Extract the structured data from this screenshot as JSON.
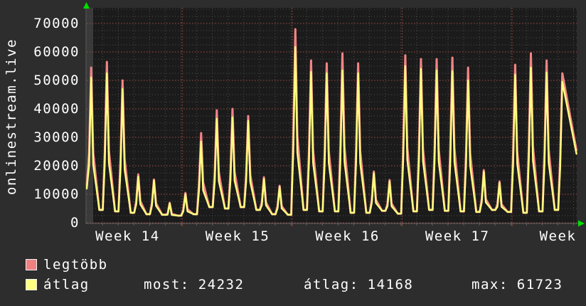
{
  "chart_data": {
    "type": "line",
    "title": "onlinestream.live",
    "grid": {
      "background": "#1b1b1b",
      "outer_background": "#2d2d2d",
      "major_color": "#a34c44",
      "minor_color": "#4c4c4c",
      "axis_color": "#606060",
      "arrow_color": "#00e000",
      "nodata_band_color": "#3a3a3a"
    },
    "y_axis": {
      "min": 0,
      "max_visible": 75500,
      "major_step": 10000,
      "minor_step": 2500,
      "ticks": [
        "0",
        "10000",
        "20000",
        "30000",
        "40000",
        "50000",
        "60000",
        "70000"
      ],
      "tick_values": [
        0,
        10000,
        20000,
        30000,
        40000,
        50000,
        60000,
        70000
      ]
    },
    "x_axis": {
      "total_days": 31.2,
      "week_boundaries_days": [
        6.08,
        13.08,
        20.08,
        27.08
      ],
      "labels": [
        {
          "text": "Week 14",
          "day": 2.6
        },
        {
          "text": "Week 15",
          "day": 9.6
        },
        {
          "text": "Week 16",
          "day": 16.6
        },
        {
          "text": "Week 17",
          "day": 23.6
        },
        {
          "text": "Week",
          "day": 30.0
        }
      ]
    },
    "series": [
      {
        "name": "legtöbb",
        "color": "#f28585",
        "swatch_color": "#ee8080",
        "daily_peaks": [
          54500,
          56500,
          50000,
          17000,
          15200,
          7000,
          10500,
          31500,
          39500,
          40000,
          37500,
          16000,
          13000,
          68000,
          57000,
          56000,
          59500,
          56000,
          18000,
          15000,
          58800,
          57500,
          57500,
          58000,
          54500,
          18500,
          14500,
          55500,
          59500,
          57000,
          52500
        ],
        "start_value": 13000,
        "end_value": 25500
      },
      {
        "name": "átlag",
        "color": "#ffff80",
        "swatch_color": "#ffff80",
        "daily_peaks": [
          51000,
          52500,
          47000,
          16200,
          14800,
          6800,
          10000,
          28500,
          36500,
          37000,
          35800,
          15400,
          12600,
          61723,
          53000,
          52500,
          53500,
          52500,
          17400,
          14500,
          55000,
          54000,
          53500,
          53200,
          50000,
          17900,
          14000,
          52000,
          54500,
          52800,
          49500
        ],
        "start_value": 12000,
        "end_value": 24232
      }
    ],
    "daily_troughs": [
      4000,
      4500,
      4000,
      3500,
      3000,
      2800,
      2500,
      3000,
      5500,
      5000,
      5500,
      4500,
      3000,
      2800,
      4500,
      4000,
      4000,
      3500,
      3500,
      4200,
      3200,
      4000,
      4500,
      4200,
      4000,
      3800,
      4500,
      3800,
      3500,
      4000,
      4500
    ],
    "stats": [
      {
        "label": "most:",
        "value": "24232"
      },
      {
        "label": "átlag:",
        "value": "14168"
      },
      {
        "label": "max:",
        "value": "61723"
      }
    ]
  }
}
